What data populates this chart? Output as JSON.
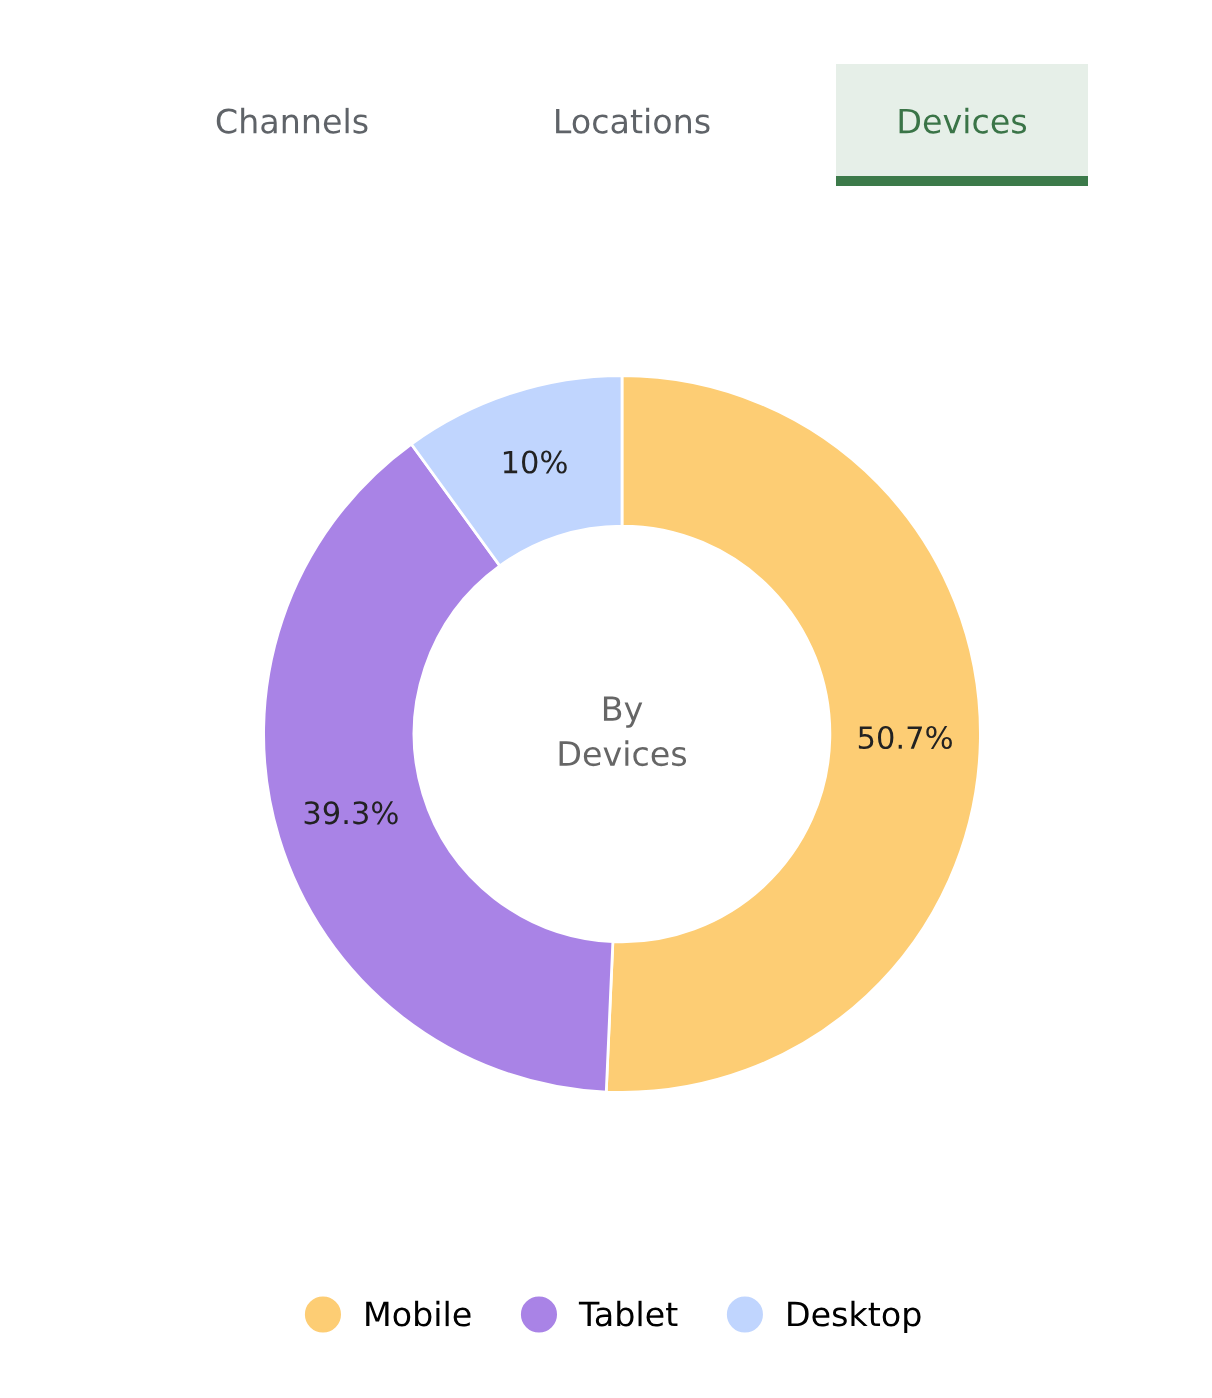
{
  "chart_data": {
    "type": "donut",
    "title": "By\nDevices",
    "categories": [
      "Mobile",
      "Tablet",
      "Desktop"
    ],
    "values": [
      50.7,
      39.3,
      10
    ],
    "colors": [
      "#fdcd74",
      "#a983e6",
      "#c0d5fe"
    ],
    "value_labels": [
      "50.7%",
      "39.3%",
      "10%"
    ],
    "legend": "bottom",
    "annotations": [
      "Channels",
      "Locations",
      "Devices"
    ]
  }
}
